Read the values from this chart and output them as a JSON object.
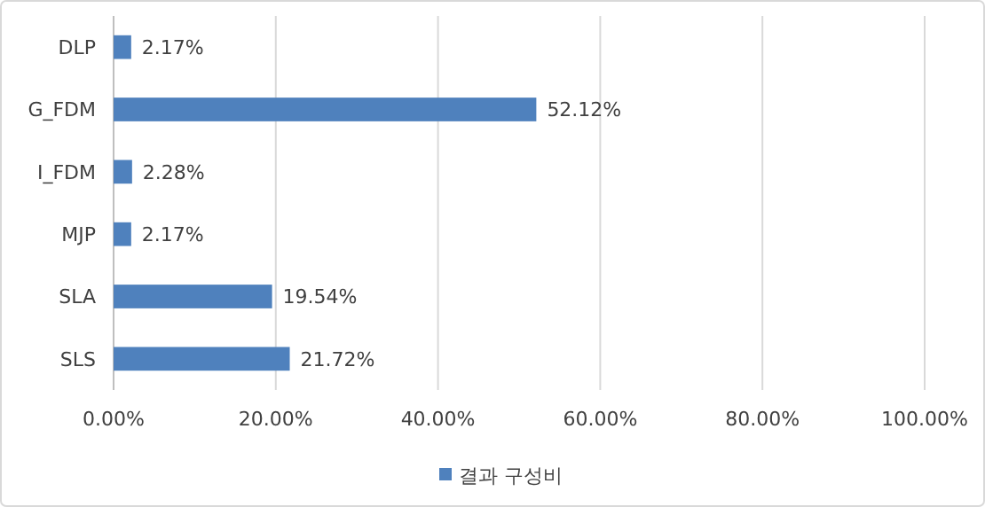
{
  "chart_data": {
    "type": "bar",
    "orientation": "horizontal",
    "categories": [
      "DLP",
      "G_FDM",
      "I_FDM",
      "MJP",
      "SLA",
      "SLS"
    ],
    "series": [
      {
        "name": "결과 구성비",
        "color": "#4f81bd",
        "values": [
          2.17,
          52.12,
          2.28,
          2.17,
          19.54,
          21.72
        ],
        "value_labels": [
          "2.17%",
          "52.12%",
          "2.28%",
          "2.17%",
          "19.54%",
          "21.72%"
        ]
      }
    ],
    "xlim": [
      0,
      100
    ],
    "xticks": [
      {
        "value": 0,
        "label": "0.00%"
      },
      {
        "value": 20,
        "label": "20.00%"
      },
      {
        "value": 40,
        "label": "40.00%"
      },
      {
        "value": 60,
        "label": "60.00%"
      },
      {
        "value": 80,
        "label": "80.00%"
      },
      {
        "value": 100,
        "label": "100.00%"
      }
    ],
    "grid": "x",
    "legend": "bottom"
  }
}
